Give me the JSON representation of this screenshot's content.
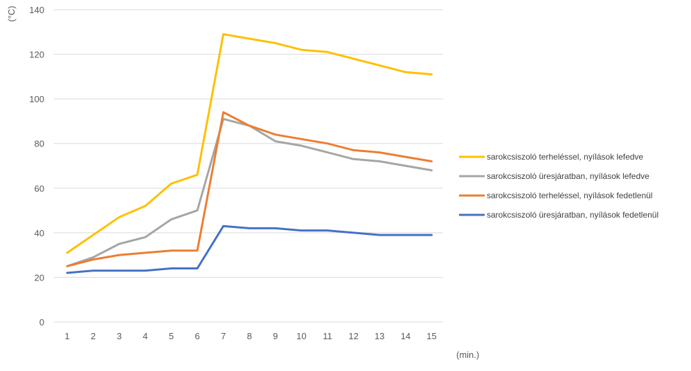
{
  "chart_data": {
    "type": "line",
    "title": "",
    "ylabel": "(°C)",
    "xlabel": "(min.)",
    "x": [
      1,
      2,
      3,
      4,
      5,
      6,
      7,
      8,
      9,
      10,
      11,
      12,
      13,
      14,
      15
    ],
    "ylim": [
      0,
      140
    ],
    "yticks": [
      0,
      20,
      40,
      60,
      80,
      100,
      120,
      140
    ],
    "grid": true,
    "legend_position": "right",
    "series": [
      {
        "name": "sarokcsiszoló terheléssel, nyílások lefedve",
        "color": "#FFC000",
        "values": [
          31,
          39,
          47,
          52,
          62,
          66,
          129,
          127,
          125,
          122,
          121,
          118,
          115,
          112,
          111
        ]
      },
      {
        "name": "sarokcsiszoló üresjáratban, nyílások lefedve",
        "color": "#A5A5A5",
        "values": [
          25,
          29,
          35,
          38,
          46,
          50,
          91,
          88,
          81,
          79,
          76,
          73,
          72,
          70,
          68
        ]
      },
      {
        "name": "sarokcsiszoló terheléssel, nyílások fedetlenül",
        "color": "#ED7D31",
        "values": [
          25,
          28,
          30,
          31,
          32,
          32,
          94,
          88,
          84,
          82,
          80,
          77,
          76,
          74,
          72
        ]
      },
      {
        "name": "sarokcsiszoló üresjáratban, nyílások fedetlenül",
        "color": "#4472C4",
        "values": [
          22,
          23,
          23,
          23,
          24,
          24,
          43,
          42,
          42,
          41,
          41,
          40,
          39,
          39,
          39
        ]
      }
    ]
  }
}
